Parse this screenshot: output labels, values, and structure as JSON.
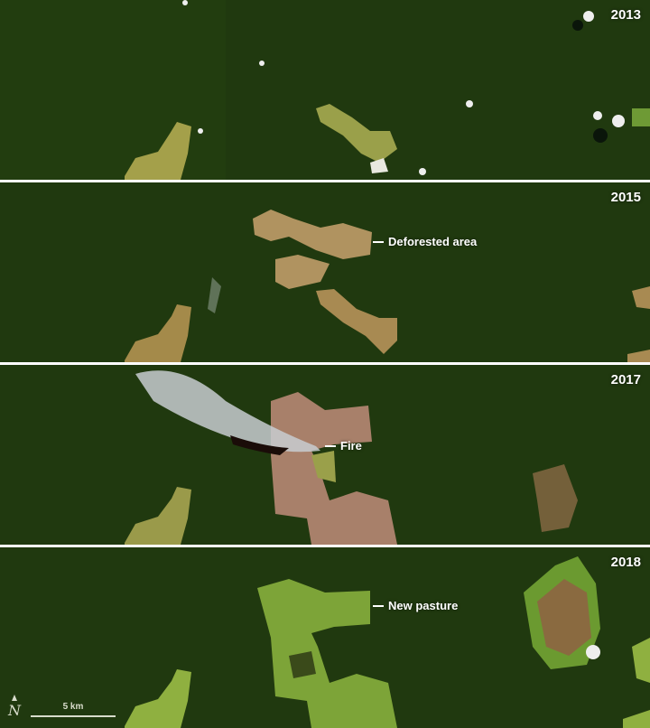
{
  "panels": [
    {
      "year": "2013"
    },
    {
      "year": "2015",
      "annotation": "Deforested area"
    },
    {
      "year": "2017",
      "annotation": "Fire"
    },
    {
      "year": "2018",
      "annotation": "New pasture"
    }
  ],
  "scale_bar": {
    "label": "5 km"
  },
  "north_arrow": {
    "symbol": "N"
  },
  "colors": {
    "forest": "#20390f",
    "clearing": "#b0945a",
    "pasture": "#8fb040",
    "burned": "#a8806a",
    "smoke": "#c8ccd0"
  }
}
